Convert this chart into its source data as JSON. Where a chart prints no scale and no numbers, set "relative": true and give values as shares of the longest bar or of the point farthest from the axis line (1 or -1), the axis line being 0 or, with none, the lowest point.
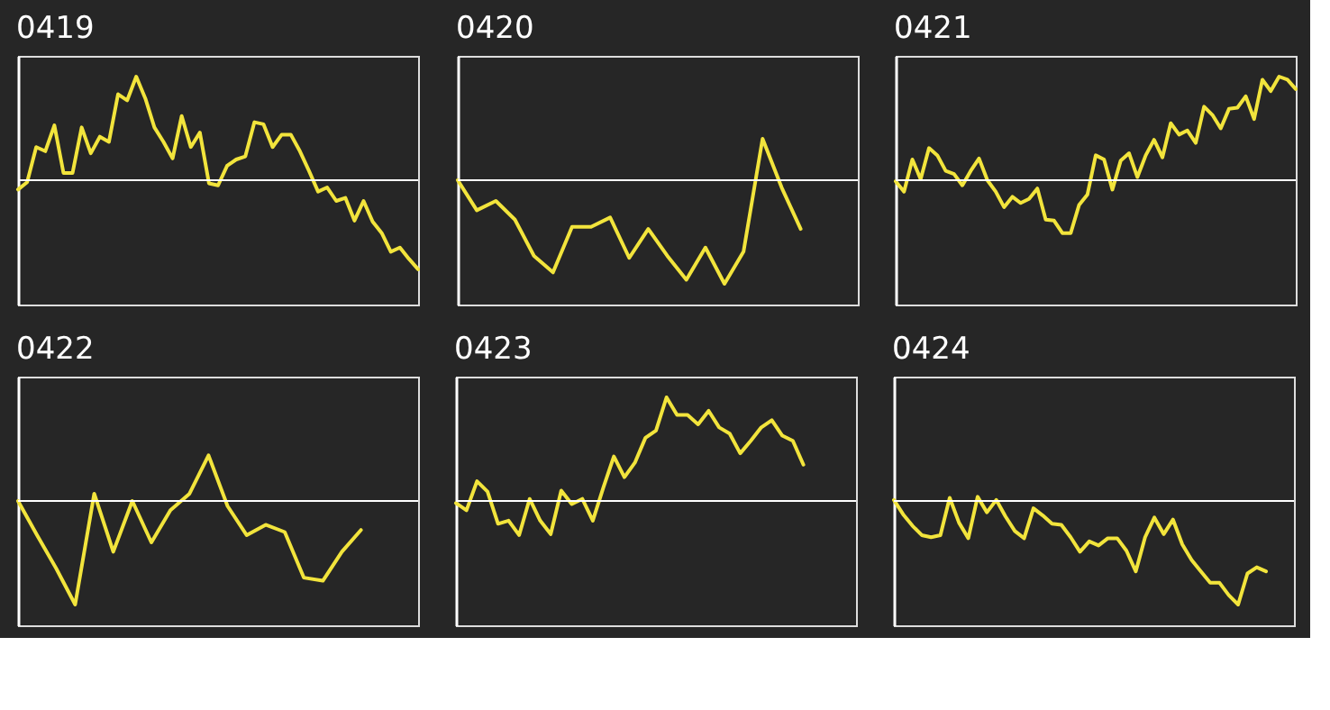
{
  "chart_data": [
    {
      "type": "line",
      "title": "0419",
      "relative": true,
      "color": "#f2e43c",
      "categories": [
        null,
        null,
        null,
        null,
        null,
        null,
        null,
        null,
        null,
        null,
        null,
        null,
        null,
        null,
        null,
        null,
        null,
        null,
        null,
        null,
        null,
        null,
        null,
        null,
        null,
        null,
        null,
        null,
        null,
        null,
        null,
        null,
        null,
        null,
        null,
        null,
        null,
        null,
        null,
        null,
        null,
        null,
        null,
        null,
        null
      ],
      "values": [
        -0.09,
        -0.02,
        0.32,
        0.28,
        0.53,
        0.07,
        0.07,
        0.51,
        0.26,
        0.42,
        0.37,
        0.83,
        0.77,
        1,
        0.79,
        0.51,
        0.37,
        0.21,
        0.62,
        0.32,
        0.46,
        -0.03,
        -0.05,
        0.14,
        0.2,
        0.23,
        0.56,
        0.54,
        0.32,
        0.44,
        0.44,
        0.28,
        0.09,
        -0.11,
        -0.07,
        -0.2,
        -0.17,
        -0.39,
        -0.2,
        -0.4,
        -0.51,
        -0.69,
        -0.65,
        -0.76,
        -0.86
      ]
    },
    {
      "type": "line",
      "title": "0420",
      "relative": true,
      "color": "#f2e43c",
      "categories": [
        null,
        null,
        null,
        null,
        null,
        null,
        null,
        null,
        null,
        null,
        null,
        null,
        null,
        null,
        null,
        null,
        null,
        null,
        null,
        null,
        null,
        null
      ],
      "values": [
        0,
        -0.29,
        -0.2,
        -0.38,
        -0.73,
        -0.89,
        -0.45,
        -0.45,
        -0.36,
        -0.75,
        -0.47,
        -0.73,
        -0.96,
        -0.65,
        -1,
        -0.69,
        0.4,
        -0.07,
        -0.47,
        null,
        null,
        null
      ]
    },
    {
      "type": "line",
      "title": "0421",
      "relative": true,
      "color": "#f2e43c",
      "categories": [
        null,
        null,
        null,
        null,
        null,
        null,
        null,
        null,
        null,
        null,
        null,
        null,
        null,
        null,
        null,
        null,
        null,
        null,
        null,
        null,
        null,
        null,
        null,
        null,
        null,
        null,
        null,
        null,
        null,
        null,
        null,
        null,
        null,
        null,
        null,
        null,
        null,
        null,
        null,
        null,
        null,
        null,
        null,
        null,
        null,
        null,
        null,
        null,
        null
      ],
      "values": [
        -0.01,
        -0.11,
        0.2,
        0.01,
        0.31,
        0.24,
        0.09,
        0.06,
        -0.05,
        0.09,
        0.21,
        0,
        -0.11,
        -0.26,
        -0.16,
        -0.22,
        -0.18,
        -0.08,
        -0.38,
        -0.39,
        -0.51,
        -0.51,
        -0.24,
        -0.14,
        0.24,
        0.2,
        -0.09,
        0.19,
        0.26,
        0.03,
        0.24,
        0.39,
        0.22,
        0.55,
        0.44,
        0.48,
        0.36,
        0.71,
        0.63,
        0.5,
        0.69,
        0.7,
        0.81,
        0.59,
        0.97,
        0.86,
        1,
        0.97,
        0.88
      ]
    },
    {
      "type": "line",
      "title": "0422",
      "relative": true,
      "color": "#f2e43c",
      "categories": [
        null,
        null,
        null,
        null,
        null,
        null,
        null,
        null,
        null,
        null,
        null,
        null,
        null,
        null,
        null,
        null,
        null,
        null,
        null,
        null,
        null,
        null
      ],
      "values": [
        0,
        -0.33,
        -0.65,
        -1,
        0.07,
        -0.49,
        0,
        -0.4,
        -0.09,
        0.07,
        0.44,
        -0.05,
        -0.33,
        -0.23,
        -0.3,
        -0.74,
        -0.77,
        -0.49,
        -0.28,
        null,
        null,
        null
      ]
    },
    {
      "type": "line",
      "title": "0423",
      "relative": true,
      "color": "#f2e43c",
      "categories": [
        null,
        null,
        null,
        null,
        null,
        null,
        null,
        null,
        null,
        null,
        null,
        null,
        null,
        null,
        null,
        null,
        null,
        null,
        null,
        null,
        null,
        null,
        null,
        null,
        null,
        null,
        null,
        null,
        null,
        null,
        null,
        null,
        null,
        null,
        null,
        null,
        null,
        null,
        null
      ],
      "values": [
        -0.02,
        -0.09,
        0.19,
        0.09,
        -0.22,
        -0.19,
        -0.33,
        0.02,
        -0.19,
        -0.32,
        0.1,
        -0.03,
        0.02,
        -0.19,
        0.13,
        0.43,
        0.23,
        0.37,
        0.61,
        0.68,
        1,
        0.83,
        0.83,
        0.74,
        0.87,
        0.71,
        0.65,
        0.46,
        0.58,
        0.71,
        0.78,
        0.63,
        0.58,
        0.35,
        null,
        null,
        null,
        null,
        null
      ]
    },
    {
      "type": "line",
      "title": "0424",
      "relative": true,
      "color": "#f2e43c",
      "categories": [
        null,
        null,
        null,
        null,
        null,
        null,
        null,
        null,
        null,
        null,
        null,
        null,
        null,
        null,
        null,
        null,
        null,
        null,
        null,
        null,
        null,
        null,
        null,
        null,
        null,
        null,
        null,
        null,
        null,
        null,
        null,
        null,
        null,
        null,
        null,
        null,
        null,
        null,
        null,
        null,
        null,
        null,
        null,
        null
      ],
      "values": [
        0.01,
        -0.13,
        -0.24,
        -0.33,
        -0.35,
        -0.33,
        0.03,
        -0.21,
        -0.36,
        0.04,
        -0.11,
        0.01,
        -0.15,
        -0.29,
        -0.36,
        -0.07,
        -0.14,
        -0.22,
        -0.23,
        -0.35,
        -0.49,
        -0.39,
        -0.43,
        -0.36,
        -0.36,
        -0.48,
        -0.68,
        -0.35,
        -0.16,
        -0.32,
        -0.18,
        -0.42,
        -0.57,
        -0.68,
        -0.79,
        -0.79,
        -0.91,
        -1,
        -0.7,
        -0.64,
        -0.68,
        null,
        null,
        null
      ]
    }
  ]
}
